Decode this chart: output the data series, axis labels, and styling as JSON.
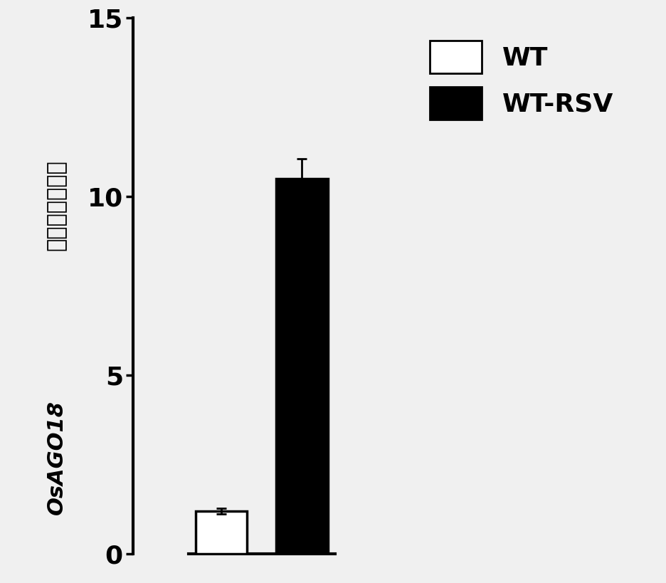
{
  "categories": [
    "WT",
    "WT-RSV"
  ],
  "values": [
    1.2,
    10.5
  ],
  "errors": [
    0.08,
    0.55
  ],
  "bar_colors": [
    "#ffffff",
    "#000000"
  ],
  "bar_edge_colors": [
    "#000000",
    "#000000"
  ],
  "bar_width": 0.35,
  "bar_positions": [
    0.6,
    1.15
  ],
  "xlim": [
    0.0,
    3.5
  ],
  "ylim": [
    0,
    15
  ],
  "yticks": [
    0,
    5,
    10,
    15
  ],
  "ylabel_italic_part": "OsAGO18",
  "ylabel_chinese_part": "基因相对表达量",
  "legend_labels": [
    "WT",
    "WT-RSV"
  ],
  "legend_colors": [
    "#ffffff",
    "#000000"
  ],
  "legend_edge_colors": [
    "#000000",
    "#000000"
  ],
  "background_color": "#f0f0f0",
  "tick_fontsize": 26,
  "legend_fontsize": 26,
  "ylabel_fontsize_italic": 22,
  "ylabel_fontsize_chinese": 22,
  "error_capsize": 5,
  "error_linewidth": 2,
  "bar_linewidth": 2.5,
  "spine_linewidth": 3.0
}
